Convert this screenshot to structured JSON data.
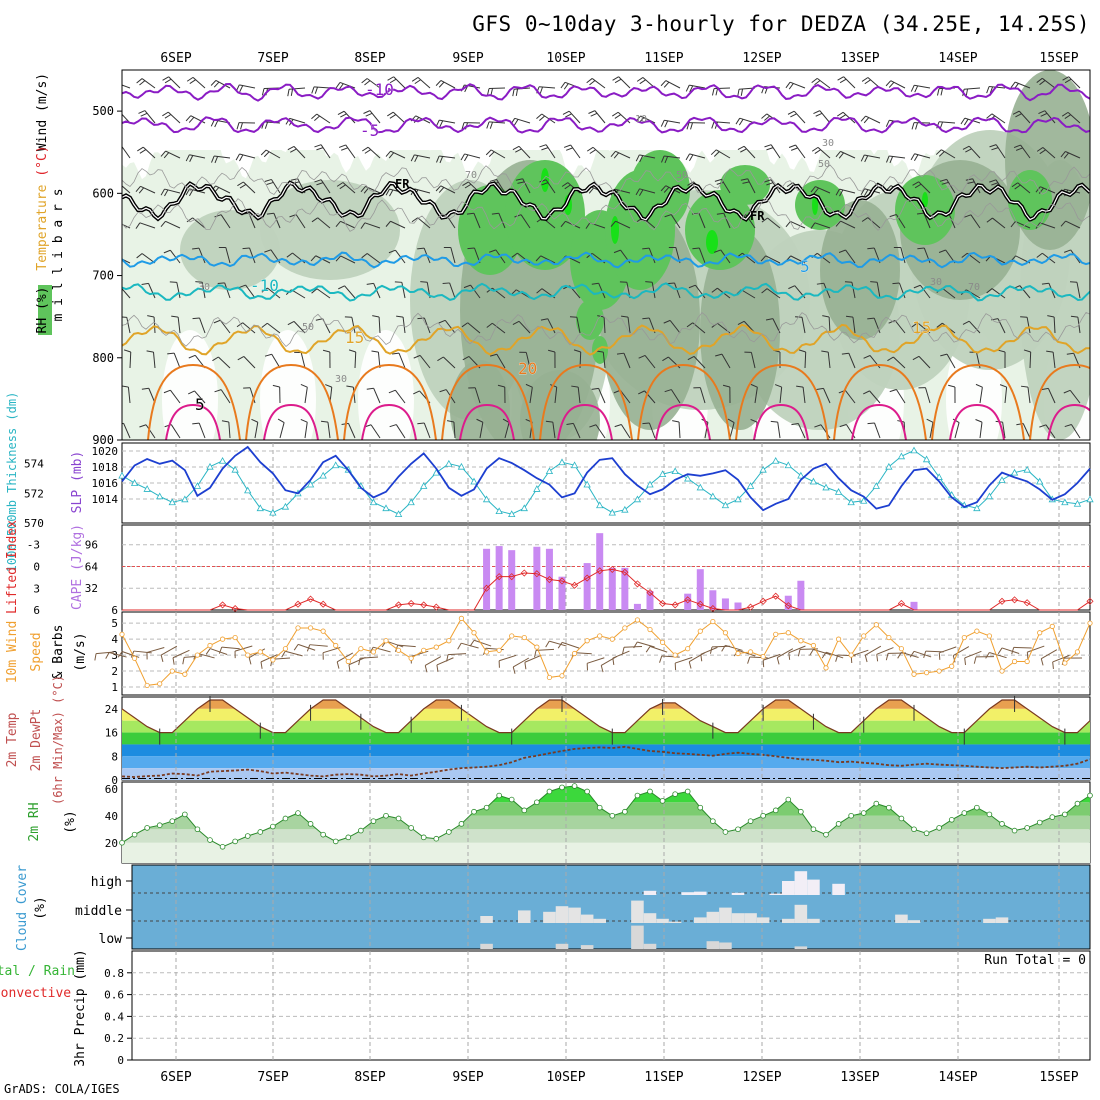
{
  "title": "GFS 0~10day 3-hourly for DEDZA (34.25E, 14.25S)",
  "credit": "GrADS: COLA/IGES",
  "dates": [
    "6SEP",
    "7SEP",
    "8SEP",
    "9SEP",
    "10SEP",
    "11SEP",
    "12SEP",
    "13SEP",
    "14SEP",
    "15SEP"
  ],
  "colors": {
    "rh_light": "#e8f3e6",
    "rh_mid": "#bfd2bd",
    "rh_dark": "#97b092",
    "rh_green": "#5fc45c",
    "rh_bright": "#18e018",
    "temp_purple": "#8a1cc4",
    "temp_blue": "#1f9be6",
    "temp_cyan": "#1bb8c0",
    "temp_orange": "#e0a428",
    "temp_dorange": "#e87a1e",
    "temp_magenta": "#dc1c8c",
    "slp": "#1d3fd0",
    "thickness": "#2ab5c4",
    "cape": "#c98af2",
    "li": "#e02a2a",
    "wind10": "#f0a030",
    "cloud_bg": "#6aaed6"
  },
  "chart_data": [
    {
      "type": "heatmap",
      "name": "upper",
      "ylabel": "m i l l i b a r s",
      "side_labels": [
        "Wind (m/s)",
        "Temperature (°C)",
        "RH (%)"
      ],
      "yticks": [
        500,
        600,
        700,
        800,
        900
      ],
      "ylim": [
        900,
        450
      ],
      "temperature_labels": [
        "-10",
        "-5",
        "FR",
        "FR",
        "5",
        "-10",
        "15",
        "20",
        "5",
        "15"
      ],
      "rh_labels": [
        "30",
        "50",
        "70",
        "10",
        "30",
        "50",
        "50",
        "30",
        "30",
        "70"
      ]
    },
    {
      "type": "line",
      "name": "slp_thickness",
      "ylabel_left": "1000-500mb Thickness (dm)",
      "ylabel_right": "SLP (mb)",
      "yticks_left": [
        570,
        572,
        574
      ],
      "yticks_right": [
        1014,
        1016,
        1018,
        1020
      ],
      "ylim_slp": [
        1011,
        1021
      ],
      "ylim_thick": [
        570,
        575.4
      ],
      "slp": [
        1016.2,
        1018.2,
        1019.0,
        1018.4,
        1018.8,
        1017.6,
        1014.4,
        1015.4,
        1017.8,
        1019.4,
        1020.5,
        1018.6,
        1017.2,
        1015.1,
        1014.7,
        1016.4,
        1018.6,
        1019.4,
        1017.6,
        1015.4,
        1014.2,
        1014.9,
        1016.8,
        1018.4,
        1019.7,
        1017.8,
        1015.4,
        1014.4,
        1015.2,
        1017.8,
        1019.1,
        1018.5,
        1017.6,
        1016.6,
        1015.8,
        1014.2,
        1014.7,
        1017.3,
        1018.9,
        1019.1,
        1017.1,
        1015.7,
        1014.6,
        1015.2,
        1016.4,
        1017.1,
        1016.9,
        1017.2,
        1017.6,
        1016.4,
        1014.2,
        1012.6,
        1013.4,
        1014.0,
        1016.4,
        1017.8,
        1018.4,
        1016.6,
        1015.1,
        1014.3,
        1012.8,
        1013.2,
        1015.6,
        1017.6,
        1017.8,
        1016.2,
        1014.2,
        1013.0,
        1013.6,
        1015.7,
        1017.3,
        1016.7,
        1016.2,
        1015.2,
        1013.9,
        1014.6,
        1016.0,
        1017.8
      ],
      "thickness": [
        573.2,
        572.7,
        572.3,
        571.8,
        571.4,
        571.6,
        572.5,
        573.8,
        574.2,
        573.6,
        572.2,
        571.0,
        570.7,
        571.1,
        572.0,
        572.6,
        573.2,
        573.9,
        573.6,
        572.5,
        571.4,
        571.0,
        570.6,
        571.4,
        572.5,
        573.4,
        574.0,
        573.8,
        572.8,
        571.6,
        570.8,
        570.6,
        571.0,
        572.3,
        573.5,
        574.1,
        573.9,
        572.6,
        571.2,
        570.7,
        570.9,
        571.6,
        572.6,
        573.3,
        573.5,
        573.0,
        572.4,
        571.8,
        571.2,
        571.6,
        572.5,
        573.6,
        574.2,
        573.9,
        573.2,
        572.8,
        572.4,
        572.1,
        571.4,
        571.5,
        572.5,
        573.8,
        574.5,
        574.9,
        574.3,
        573.1,
        571.9,
        571.2,
        571.0,
        571.8,
        572.9,
        573.4,
        573.6,
        572.8,
        571.6,
        571.4,
        571.3,
        571.6
      ]
    },
    {
      "type": "bar",
      "name": "cape_li",
      "ylabel_left": "Lifted Index",
      "ylabel_right": "CAPE (J/kg)",
      "yticks_left": [
        "-3",
        "0",
        "3",
        "6"
      ],
      "yticks_right": [
        32,
        64,
        96
      ],
      "cape_bars": [
        {
          "step": 29,
          "value": 90
        },
        {
          "step": 30,
          "value": 94
        },
        {
          "step": 31,
          "value": 88
        },
        {
          "step": 33,
          "value": 93
        },
        {
          "step": 34,
          "value": 90
        },
        {
          "step": 35,
          "value": 49
        },
        {
          "step": 37,
          "value": 69
        },
        {
          "step": 38,
          "value": 113
        },
        {
          "step": 39,
          "value": 62
        },
        {
          "step": 40,
          "value": 62
        },
        {
          "step": 41,
          "value": 9
        },
        {
          "step": 42,
          "value": 28
        },
        {
          "step": 45,
          "value": 24
        },
        {
          "step": 46,
          "value": 60
        },
        {
          "step": 47,
          "value": 29
        },
        {
          "step": 48,
          "value": 17
        },
        {
          "step": 49,
          "value": 11
        },
        {
          "step": 53,
          "value": 21
        },
        {
          "step": 54,
          "value": 43
        },
        {
          "step": 63,
          "value": 12
        }
      ],
      "li": [
        6,
        6,
        6,
        6,
        6,
        6,
        6,
        6,
        5.3,
        5.8,
        6,
        6,
        6,
        6,
        5.2,
        4.5,
        5.2,
        6,
        6,
        6,
        6,
        6,
        5.3,
        5.1,
        5.3,
        5.6,
        6,
        6,
        6,
        3.0,
        1.4,
        1.4,
        0.9,
        1.0,
        1.8,
        2.0,
        2.6,
        1.6,
        0.6,
        0.4,
        0.8,
        2.4,
        3.6,
        5.1,
        5.3,
        4.6,
        5.2,
        5.8,
        6,
        6,
        5.6,
        4.8,
        4.1,
        5.4,
        6,
        6,
        6,
        6,
        6,
        6,
        6,
        6,
        5.1,
        6,
        6,
        6,
        6,
        6,
        6,
        6,
        4.8,
        4.6,
        5.0,
        6,
        6,
        6,
        6,
        4.8
      ]
    },
    {
      "type": "line",
      "name": "wind10m",
      "ylabel": "10m Wind Speed & Barbs (m/s)",
      "yticks": [
        1,
        2,
        3,
        4,
        5
      ],
      "ylim": [
        0.5,
        5.7
      ],
      "values": [
        4.3,
        2.8,
        1.1,
        1.2,
        2.0,
        1.8,
        3.0,
        3.6,
        4.0,
        4.1,
        3.0,
        3.2,
        2.7,
        3.4,
        4.7,
        4.7,
        4.5,
        3.6,
        2.6,
        3.4,
        3.2,
        3.9,
        3.3,
        2.8,
        3.3,
        3.5,
        3.9,
        5.3,
        4.4,
        3.2,
        3.3,
        4.2,
        4.1,
        3.5,
        1.6,
        1.7,
        3.1,
        3.9,
        4.2,
        4.0,
        4.7,
        5.2,
        4.6,
        3.8,
        3.0,
        3.4,
        4.5,
        5.1,
        4.4,
        3.1,
        3.2,
        2.9,
        4.3,
        4.4,
        3.9,
        3.6,
        2.2,
        4.0,
        3.0,
        4.2,
        4.9,
        4.1,
        3.4,
        1.8,
        1.9,
        2.0,
        2.3,
        4.1,
        4.5,
        4.2,
        2.0,
        2.6,
        2.6,
        4.4,
        4.8,
        2.5,
        3.2,
        5.0
      ]
    },
    {
      "type": "area",
      "name": "temp_dewpoint",
      "ylabel": "2m Temp 2m DewPt (6hr Min/Max) (°C)",
      "yticks": [
        0,
        8,
        16,
        24
      ],
      "ylim": [
        0,
        28
      ],
      "temp": [
        24,
        21,
        18,
        16,
        16,
        20,
        24,
        27,
        27,
        24,
        21,
        18,
        16,
        16,
        20,
        24,
        27,
        27,
        24,
        21,
        18,
        16,
        16,
        20,
        24,
        27,
        27,
        24,
        21,
        18,
        16,
        16,
        20,
        24,
        27,
        27,
        24,
        21,
        18,
        16,
        16,
        20,
        24,
        26,
        26,
        23,
        20,
        18,
        16,
        16,
        20,
        24,
        27,
        27,
        24,
        21,
        18,
        16,
        16,
        20,
        24,
        27,
        27,
        24,
        21,
        18,
        16,
        16,
        20,
        24,
        27,
        27,
        24,
        21,
        18,
        16,
        16,
        20
      ],
      "dewpoint": [
        1.2,
        1.0,
        1.3,
        1.5,
        2.2,
        2.0,
        1.5,
        2.8,
        3.0,
        3.2,
        3.5,
        3.0,
        2.2,
        2.5,
        2.0,
        1.5,
        1.2,
        1.8,
        2.0,
        1.8,
        1.2,
        1.5,
        2.0,
        1.5,
        2.2,
        2.8,
        3.5,
        4.0,
        4.2,
        4.5,
        5.0,
        6.0,
        7.5,
        8.2,
        9.0,
        9.8,
        10.5,
        10.8,
        11.0,
        10.8,
        11.2,
        10.5,
        9.8,
        9.5,
        9.0,
        8.8,
        8.5,
        8.2,
        8.8,
        9.2,
        8.8,
        8.5,
        8.0,
        7.5,
        7.0,
        6.8,
        6.5,
        6.0,
        6.2,
        5.8,
        5.5,
        5.0,
        4.8,
        5.2,
        5.5,
        5.2,
        5.0,
        4.8,
        4.5,
        4.2,
        4.0,
        4.2,
        4.5,
        4.2,
        4.5,
        4.8,
        5.5,
        7.0
      ]
    },
    {
      "type": "area",
      "name": "rh2m",
      "ylabel": "2m RH (%)",
      "yticks": [
        20,
        40,
        60
      ],
      "ylim": [
        5,
        65
      ],
      "values": [
        20,
        26,
        31,
        33,
        36,
        41,
        30,
        22,
        17,
        21,
        25,
        28,
        32,
        38,
        42,
        34,
        26,
        21,
        24,
        29,
        36,
        40,
        38,
        31,
        24,
        23,
        28,
        34,
        43,
        46,
        55,
        52,
        44,
        50,
        58,
        61,
        62,
        58,
        46,
        40,
        43,
        55,
        58,
        51,
        56,
        58,
        46,
        36,
        28,
        30,
        36,
        40,
        44,
        52,
        43,
        30,
        26,
        34,
        40,
        42,
        49,
        46,
        38,
        30,
        27,
        31,
        37,
        42,
        46,
        41,
        34,
        29,
        31,
        35,
        39,
        41,
        49,
        55
      ]
    },
    {
      "type": "bar",
      "name": "cloud_cover",
      "ylabel": "Cloud Cover (%)",
      "levels": [
        "high",
        "middle",
        "low"
      ],
      "high": [
        {
          "step": 42,
          "value": 15
        },
        {
          "step": 45,
          "value": 10
        },
        {
          "step": 46,
          "value": 12
        },
        {
          "step": 49,
          "value": 8
        },
        {
          "step": 52,
          "value": 5
        },
        {
          "step": 53,
          "value": 50
        },
        {
          "step": 54,
          "value": 85
        },
        {
          "step": 55,
          "value": 55
        },
        {
          "step": 57,
          "value": 40
        }
      ],
      "middle": [
        {
          "step": 29,
          "value": 25
        },
        {
          "step": 32,
          "value": 45
        },
        {
          "step": 34,
          "value": 40
        },
        {
          "step": 35,
          "value": 60
        },
        {
          "step": 36,
          "value": 55
        },
        {
          "step": 37,
          "value": 30
        },
        {
          "step": 38,
          "value": 15
        },
        {
          "step": 41,
          "value": 80
        },
        {
          "step": 42,
          "value": 35
        },
        {
          "step": 43,
          "value": 15
        },
        {
          "step": 44,
          "value": 5
        },
        {
          "step": 46,
          "value": 20
        },
        {
          "step": 47,
          "value": 40
        },
        {
          "step": 48,
          "value": 55
        },
        {
          "step": 49,
          "value": 35
        },
        {
          "step": 50,
          "value": 35
        },
        {
          "step": 51,
          "value": 20
        },
        {
          "step": 53,
          "value": 15
        },
        {
          "step": 54,
          "value": 65
        },
        {
          "step": 55,
          "value": 15
        },
        {
          "step": 62,
          "value": 30
        },
        {
          "step": 63,
          "value": 10
        },
        {
          "step": 69,
          "value": 15
        },
        {
          "step": 70,
          "value": 20
        }
      ],
      "low": [
        {
          "step": 29,
          "value": 20
        },
        {
          "step": 35,
          "value": 20
        },
        {
          "step": 37,
          "value": 15
        },
        {
          "step": 41,
          "value": 90
        },
        {
          "step": 42,
          "value": 20
        },
        {
          "step": 47,
          "value": 30
        },
        {
          "step": 48,
          "value": 25
        },
        {
          "step": 54,
          "value": 10
        }
      ]
    },
    {
      "type": "bar",
      "name": "precip",
      "ylabel": "3hr Precip (mm)",
      "side_labels": [
        "Total / Rain",
        "Convective"
      ],
      "yticks": [
        "0",
        "0.2",
        "0.4",
        "0.6",
        "0.8"
      ],
      "ylim": [
        0,
        1
      ],
      "run_total_label": "Run Total = 0",
      "values": []
    }
  ]
}
